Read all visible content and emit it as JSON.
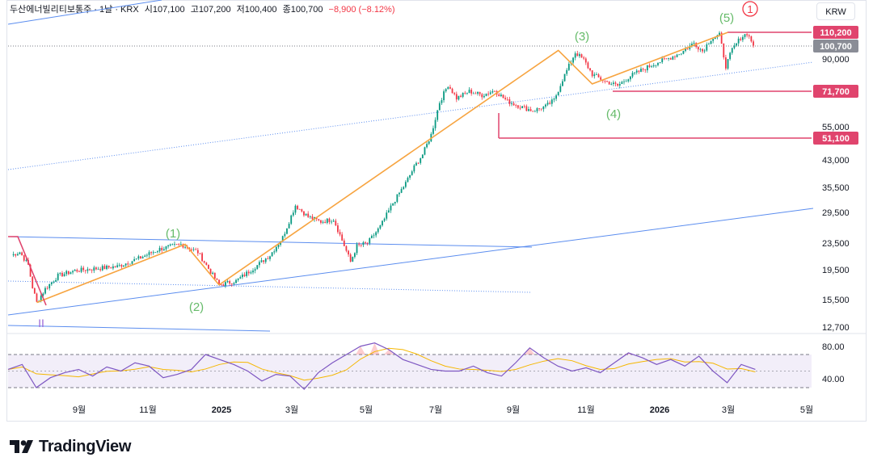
{
  "header": {
    "symbol": "두산에너빌리티보통주",
    "interval": "1날",
    "exchange": "KRX",
    "open_label": "시",
    "open": "107,100",
    "high_label": "고",
    "high": "107,200",
    "low_label": "저",
    "low": "100,400",
    "close_label": "종",
    "close": "100,700",
    "change": "−8,900 (−8.12%)"
  },
  "currency_button": "KRW",
  "brand": {
    "name": "TradingView",
    "logo": "tv-logo-icon"
  },
  "colors": {
    "up": "#089981",
    "down": "#f23645",
    "wave": "#f7a440",
    "trend": "#5b8def",
    "level": "#e0446d",
    "rsi": "#7e57c2",
    "rsi_ma": "#f5b700",
    "wave_label": "#66bb6a",
    "circle": "#f23645"
  },
  "price_tags": {
    "high_level": "110,200",
    "last_price": "100,700",
    "support_1": "71,700",
    "support_2": "51,100"
  },
  "rsi_axis": [
    "80.00",
    "40.00"
  ],
  "chart_data": {
    "type": "candlestick",
    "title": "두산에너빌리티보통주 · 1날 · KRX",
    "scale": "log",
    "ylim": [
      12000,
      135000
    ],
    "y_ticks": [
      "90,000",
      "55,000",
      "43,000",
      "35,500",
      "29,500",
      "23,500",
      "19,500",
      "15,500",
      "12,700"
    ],
    "x_ticks": [
      "9월",
      "11월",
      "2025",
      "3월",
      "5월",
      "7월",
      "9월",
      "11월",
      "2026",
      "3월",
      "5월"
    ],
    "price_series": [
      [
        0,
        21500
      ],
      [
        4,
        22000
      ],
      [
        8,
        20000
      ],
      [
        10,
        17000
      ],
      [
        12,
        15200
      ],
      [
        16,
        16800
      ],
      [
        22,
        18500
      ],
      [
        30,
        19200
      ],
      [
        40,
        19500
      ],
      [
        50,
        19800
      ],
      [
        60,
        21000
      ],
      [
        70,
        22500
      ],
      [
        80,
        23300
      ],
      [
        88,
        22000
      ],
      [
        93,
        19500
      ],
      [
        98,
        17300
      ],
      [
        106,
        17800
      ],
      [
        114,
        19500
      ],
      [
        122,
        21500
      ],
      [
        128,
        24500
      ],
      [
        134,
        31000
      ],
      [
        140,
        28500
      ],
      [
        146,
        27500
      ],
      [
        152,
        28000
      ],
      [
        156,
        24000
      ],
      [
        160,
        20500
      ],
      [
        163,
        23000
      ],
      [
        168,
        23500
      ],
      [
        174,
        26500
      ],
      [
        180,
        31500
      ],
      [
        186,
        36500
      ],
      [
        190,
        41000
      ],
      [
        194,
        45000
      ],
      [
        198,
        52000
      ],
      [
        202,
        66000
      ],
      [
        206,
        75000
      ],
      [
        210,
        68000
      ],
      [
        216,
        71500
      ],
      [
        222,
        69500
      ],
      [
        228,
        72000
      ],
      [
        234,
        66500
      ],
      [
        240,
        64000
      ],
      [
        246,
        62000
      ],
      [
        252,
        64000
      ],
      [
        256,
        67000
      ],
      [
        260,
        78000
      ],
      [
        266,
        95000
      ],
      [
        270,
        90000
      ],
      [
        274,
        81000
      ],
      [
        280,
        77000
      ],
      [
        286,
        74500
      ],
      [
        292,
        80000
      ],
      [
        298,
        84000
      ],
      [
        304,
        88000
      ],
      [
        310,
        91000
      ],
      [
        316,
        95000
      ],
      [
        322,
        102000
      ],
      [
        326,
        96000
      ],
      [
        330,
        105000
      ],
      [
        334,
        108000
      ],
      [
        337,
        86000
      ],
      [
        340,
        97000
      ],
      [
        344,
        106000
      ],
      [
        347,
        109500
      ],
      [
        350,
        100700
      ]
    ],
    "candles_total_days": 350,
    "rsi": {
      "levels": [
        70,
        50,
        30
      ],
      "values": [
        52,
        58,
        30,
        42,
        48,
        52,
        44,
        55,
        50,
        60,
        56,
        42,
        46,
        52,
        70,
        64,
        58,
        50,
        38,
        46,
        44,
        28,
        48,
        60,
        70,
        80,
        84,
        76,
        64,
        58,
        52,
        50,
        50,
        56,
        48,
        44,
        60,
        78,
        66,
        56,
        50,
        54,
        48,
        60,
        72,
        66,
        58,
        64,
        56,
        68,
        50,
        36,
        58,
        52
      ]
    },
    "elliott_wave": {
      "labels": [
        "(1)",
        "(2)",
        "(3)",
        "(4)",
        "(5)"
      ],
      "points": [
        [
          12,
          15200
        ],
        [
          82,
          23300
        ],
        [
          98,
          17300
        ],
        [
          258,
          96500
        ],
        [
          274,
          75500
        ],
        [
          338,
          110200
        ]
      ],
      "wave_ii_label": "II",
      "circle_label": "1"
    },
    "horizontal_levels": [
      110200,
      71700,
      51100
    ],
    "last_price": 100700
  }
}
